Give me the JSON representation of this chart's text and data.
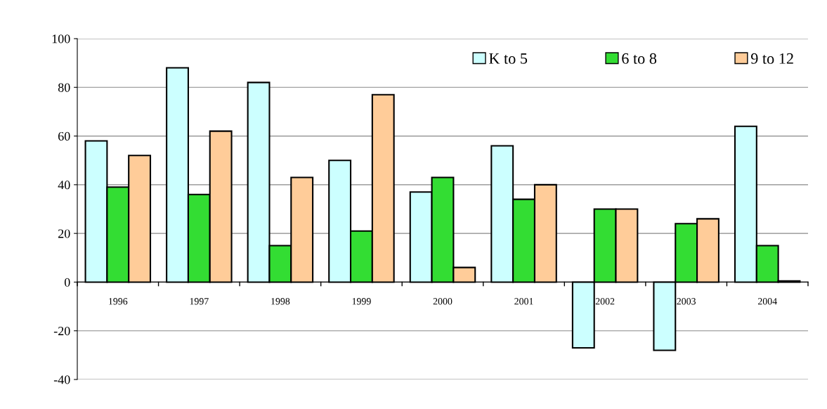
{
  "chart_data": {
    "type": "bar",
    "categories": [
      "1996",
      "1997",
      "1998",
      "1999",
      "2000",
      "2001",
      "2002",
      "2003",
      "2004"
    ],
    "series": [
      {
        "name": "K to 5",
        "color": "#ccffff",
        "values": [
          58,
          88,
          82,
          50,
          37,
          56,
          -27,
          -28,
          64
        ]
      },
      {
        "name": "6 to 8",
        "color": "#33dd33",
        "values": [
          39,
          36,
          15,
          21,
          43,
          34,
          30,
          24,
          15
        ]
      },
      {
        "name": "9 to 12",
        "color": "#ffcc99",
        "values": [
          52,
          62,
          43,
          77,
          6,
          40,
          30,
          26,
          0.5
        ]
      }
    ],
    "ylim": [
      -40,
      100
    ],
    "yticks": [
      -40,
      -20,
      0,
      20,
      40,
      60,
      80,
      100
    ],
    "grid": "y",
    "legend": "top right"
  }
}
